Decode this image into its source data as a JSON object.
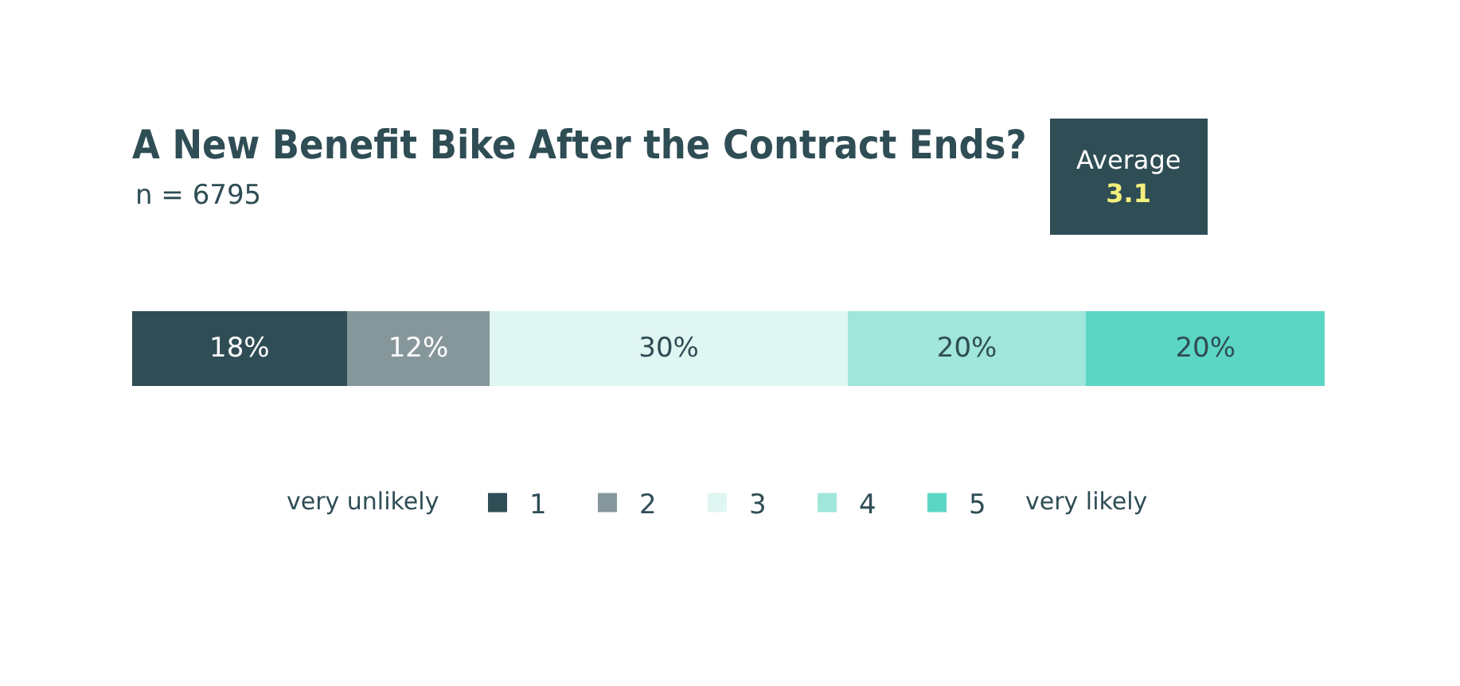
{
  "chart_data": {
    "type": "bar",
    "orientation": "horizontal",
    "stacked": true,
    "title": "A New Benefit Bike After the Contract Ends?",
    "subtitle": "n = 6795",
    "categories": [
      null
    ],
    "series": [
      {
        "name": "1",
        "color": "#2f4d55",
        "values": [
          18
        ],
        "value_labels": [
          "18%"
        ]
      },
      {
        "name": "2",
        "color": "#86979b",
        "values": [
          12
        ],
        "value_labels": [
          "12%"
        ]
      },
      {
        "name": "3",
        "color": "#e0f6f2",
        "values": [
          30
        ],
        "value_labels": [
          "30%"
        ]
      },
      {
        "name": "4",
        "color": "#a0e6da",
        "values": [
          20
        ],
        "value_labels": [
          "20%"
        ]
      },
      {
        "name": "5",
        "color": "#5cd6c4",
        "values": [
          20
        ],
        "value_labels": [
          "20%"
        ]
      }
    ],
    "xlim": [
      0,
      100
    ],
    "legend": "bottom",
    "annotations": [
      "Average",
      "3.1",
      "very unlikely",
      "very likely"
    ]
  }
}
